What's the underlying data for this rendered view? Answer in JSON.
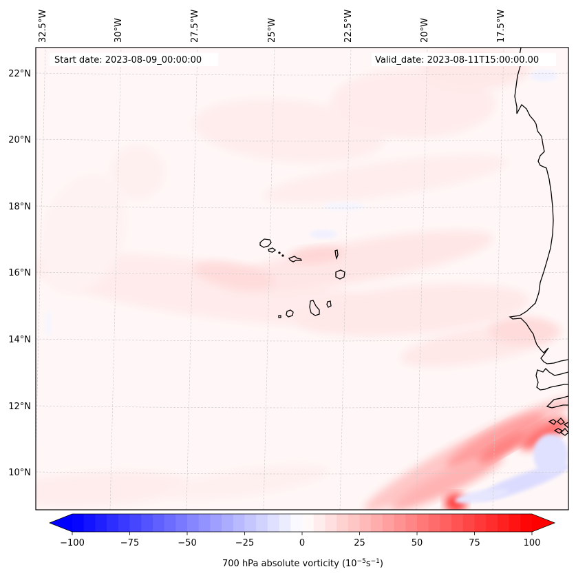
{
  "figure": {
    "type": "map",
    "title_left": "Start date: 2023-08-09_00:00:00",
    "title_right": "Valid_date: 2023-08-11T15:00:00.00"
  },
  "chart_data": {
    "type": "heatmap",
    "variable": "700 hPa absolute vorticity",
    "units_label": "700 hPa absolute vorticity (10⁻⁵s⁻¹)",
    "colorbar": {
      "label_main": "700 hPa absolute vorticity (10",
      "label_exp1": "−5",
      "label_mid": "s",
      "label_exp2": "−1",
      "label_end": ")",
      "range": [
        -100,
        100
      ],
      "levels_step": 5,
      "extend": "both",
      "colormap": "bwr",
      "ticks": [
        -100,
        -75,
        -50,
        -25,
        0,
        25,
        50,
        75,
        100
      ],
      "tick_labels": [
        "−100",
        "−75",
        "−50",
        "−25",
        "0",
        "25",
        "50",
        "75",
        "100"
      ],
      "low_color": "#0000ff",
      "mid_color": "#ffffff",
      "high_color": "#ff0000"
    },
    "lon_ticks": [
      -32.5,
      -30,
      -27.5,
      -25,
      -22.5,
      -20,
      -17.5
    ],
    "lon_tick_labels": [
      "32.5°W",
      "30°W",
      "27.5°W",
      "25°W",
      "22.5°W",
      "20°W",
      "17.5°W"
    ],
    "lat_ticks": [
      22,
      20,
      18,
      16,
      14,
      12,
      10
    ],
    "lat_tick_labels": [
      "22°N",
      "20°N",
      "18°N",
      "16°N",
      "14°N",
      "12°N",
      "10°N"
    ],
    "extent": {
      "lon": [
        -33,
        -15.5
      ],
      "lat": [
        9,
        22.8
      ]
    },
    "gridlines": true,
    "features": {
      "coastline": "West Africa coast (Mauritania, Senegal, Gambia, Guinea-Bissau, Guinea)",
      "islands": "Cape Verde"
    },
    "field_summary": [
      {
        "region": "background ocean",
        "value_range": [
          0,
          5
        ]
      },
      {
        "region": "band around 15-17N, 30-20W",
        "value_range": [
          5,
          15
        ]
      },
      {
        "region": "north central 19-22N",
        "value_range": [
          5,
          12
        ]
      },
      {
        "region": "southeast 9-11N, 21-16W",
        "value_range": [
          30,
          75
        ]
      },
      {
        "region": "southeast negative pocket near 9.5N, 18W",
        "value_range": [
          -25,
          -5
        ]
      }
    ]
  }
}
